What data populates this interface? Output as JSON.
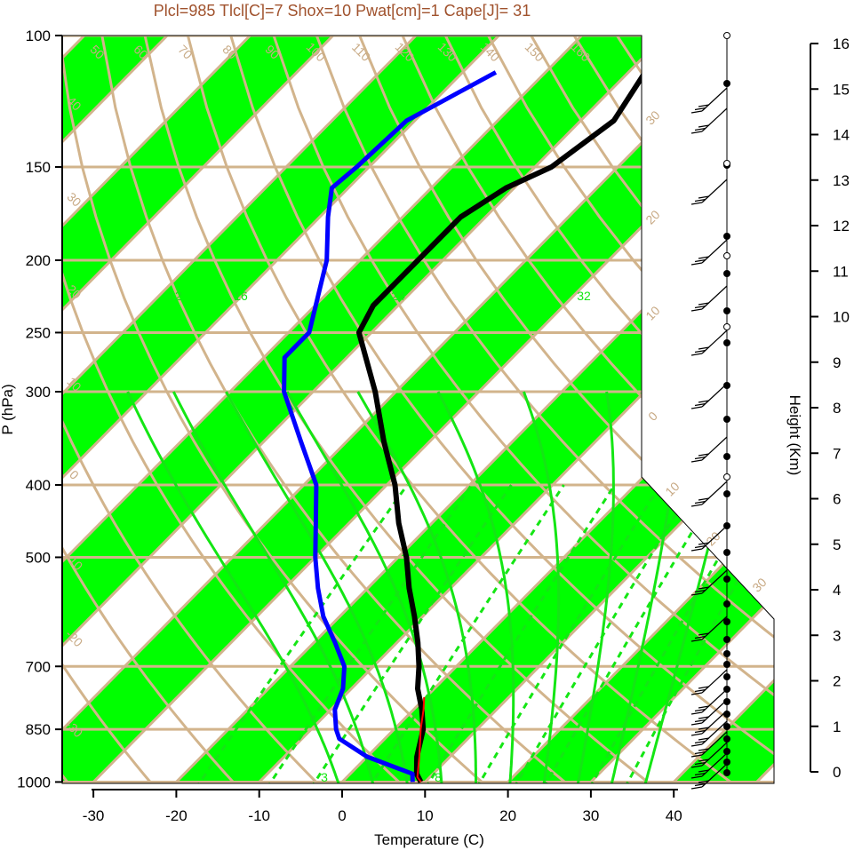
{
  "title": "Plcl=985 Tlcl[C]=7 Shox=10 Pwat[cm]=1 Cape[J]= 31",
  "colors": {
    "band_green": "#00ff00",
    "grid_tan": "#d2b48c",
    "temperature": "#000000",
    "dewpoint": "#0000ff",
    "parcel": "#ff0000",
    "moist_adiabat": "#14e614",
    "title": "#a0522d"
  },
  "chart_data": {
    "type": "line",
    "subtype": "skew-t log-p",
    "xlabel": "Temperature (C)",
    "ylabel": "P (hPa)",
    "y2label": "Height (Km)",
    "x_ticks": [
      -30,
      -20,
      -10,
      0,
      10,
      20,
      30,
      40
    ],
    "p_ticks": [
      100,
      150,
      200,
      250,
      300,
      400,
      500,
      700,
      850,
      1000
    ],
    "height_ticks": [
      16,
      15,
      14,
      13,
      12,
      11,
      10,
      9,
      8,
      7,
      6,
      5,
      4,
      3,
      2,
      1,
      0
    ],
    "xlim": [
      -34,
      36
    ],
    "plim": [
      1050,
      100
    ],
    "log_scale_y": true,
    "isotherm_labels_top": [
      "50",
      "60",
      "70",
      "80",
      "90",
      "100",
      "110",
      "120",
      "130",
      "140",
      "150",
      "160"
    ],
    "isotherm_labels_left": [
      "40",
      "30",
      "20",
      "10",
      "0",
      "-10",
      "-20",
      "-30"
    ],
    "isotherm_labels_right": [
      "30",
      "20",
      "10",
      "0",
      "10",
      "20",
      "30"
    ],
    "moist_adiabat_labels": [
      "12",
      "16",
      "24",
      "32"
    ],
    "mixing_ratio_labels": [
      "3",
      "8"
    ],
    "series": [
      {
        "name": "Temperature",
        "points": [
          {
            "p": 1000,
            "t": 9.5
          },
          {
            "p": 975,
            "t": 8.0
          },
          {
            "p": 925,
            "t": 6.0
          },
          {
            "p": 850,
            "t": 3.5
          },
          {
            "p": 800,
            "t": 1.0
          },
          {
            "p": 750,
            "t": -2.0
          },
          {
            "p": 700,
            "t": -4.5
          },
          {
            "p": 650,
            "t": -7.5
          },
          {
            "p": 600,
            "t": -11.0
          },
          {
            "p": 550,
            "t": -15.0
          },
          {
            "p": 500,
            "t": -19.0
          },
          {
            "p": 450,
            "t": -24.0
          },
          {
            "p": 400,
            "t": -29.0
          },
          {
            "p": 350,
            "t": -35.5
          },
          {
            "p": 300,
            "t": -42.5
          },
          {
            "p": 250,
            "t": -51.5
          },
          {
            "p": 230,
            "t": -53.0
          },
          {
            "p": 200,
            "t": -53.0
          },
          {
            "p": 175,
            "t": -53.0
          },
          {
            "p": 160,
            "t": -51.0
          },
          {
            "p": 150,
            "t": -48.0
          },
          {
            "p": 130,
            "t": -46.0
          },
          {
            "p": 112,
            "t": -48.0
          }
        ]
      },
      {
        "name": "Dewpoint",
        "points": [
          {
            "p": 1000,
            "t": 8.5
          },
          {
            "p": 975,
            "t": 7.5
          },
          {
            "p": 925,
            "t": 0.0
          },
          {
            "p": 875,
            "t": -5.5
          },
          {
            "p": 850,
            "t": -7.0
          },
          {
            "p": 800,
            "t": -9.5
          },
          {
            "p": 750,
            "t": -11.0
          },
          {
            "p": 700,
            "t": -13.5
          },
          {
            "p": 650,
            "t": -17.5
          },
          {
            "p": 600,
            "t": -22.0
          },
          {
            "p": 550,
            "t": -26.0
          },
          {
            "p": 500,
            "t": -30.0
          },
          {
            "p": 450,
            "t": -34.0
          },
          {
            "p": 400,
            "t": -38.5
          },
          {
            "p": 350,
            "t": -45.5
          },
          {
            "p": 300,
            "t": -53.5
          },
          {
            "p": 270,
            "t": -57.5
          },
          {
            "p": 250,
            "t": -57.5
          },
          {
            "p": 200,
            "t": -64.0
          },
          {
            "p": 175,
            "t": -69.0
          },
          {
            "p": 160,
            "t": -72.0
          },
          {
            "p": 150,
            "t": -71.5
          },
          {
            "p": 130,
            "t": -71.0
          },
          {
            "p": 112,
            "t": -66.0
          }
        ]
      },
      {
        "name": "Parcel",
        "points": [
          {
            "p": 1000,
            "t": 9.5
          },
          {
            "p": 985,
            "t": 8.5
          },
          {
            "p": 925,
            "t": 6.3
          },
          {
            "p": 850,
            "t": 3.2
          },
          {
            "p": 800,
            "t": 1.2
          },
          {
            "p": 770,
            "t": -0.2
          }
        ]
      }
    ],
    "wind_profile": {
      "levels": 28,
      "markers": "filled circles along right column, wind barbs at each level"
    }
  }
}
